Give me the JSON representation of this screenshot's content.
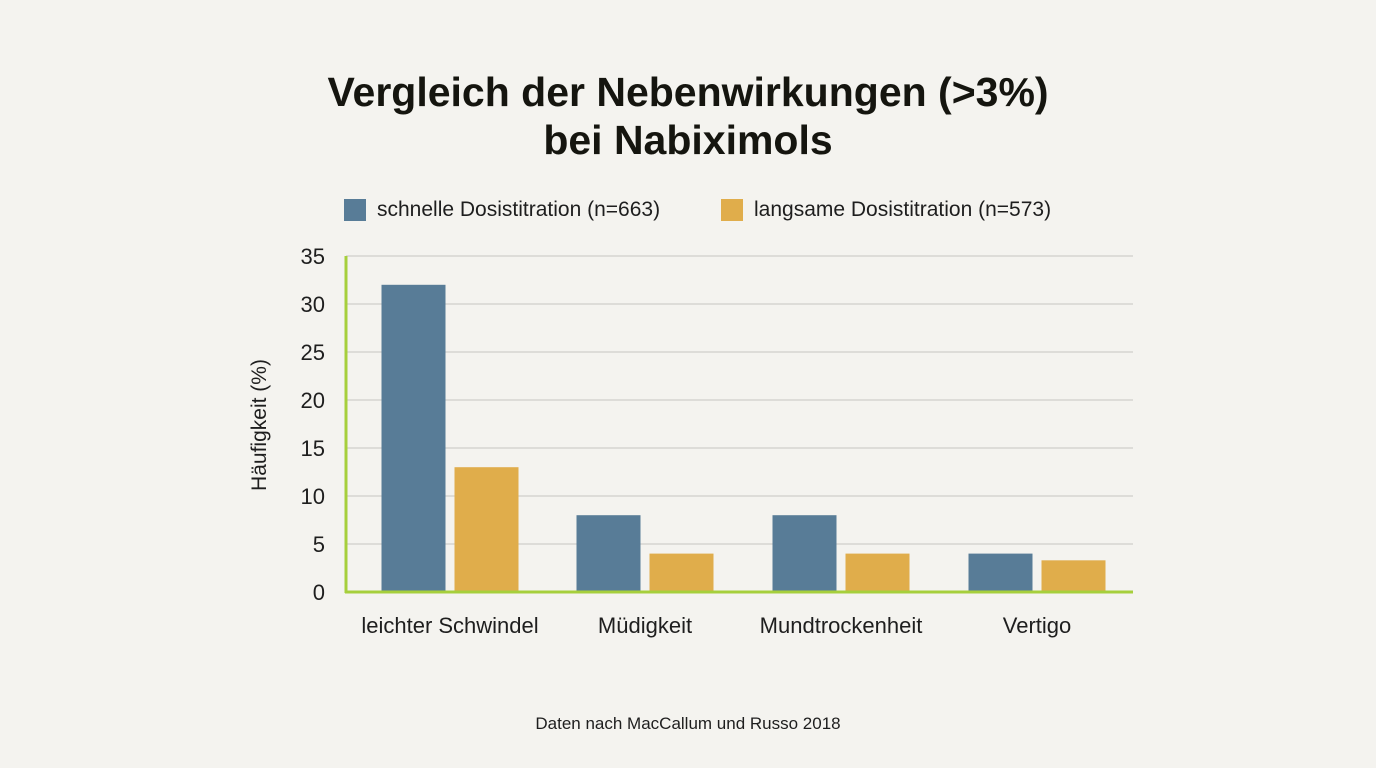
{
  "title_line1": "Vergleich der Nebenwirkungen (>3%)",
  "title_line2": "bei Nabiximols",
  "footer": "Daten nach MacCallum und Russo 2018",
  "colors": {
    "series1": "#587c97",
    "series2": "#e0ad4b",
    "axis": "#a6cf3c",
    "grid": "#cfcfcb",
    "background": "#f4f3ef"
  },
  "chart_data": {
    "type": "bar",
    "title": "Vergleich der Nebenwirkungen (>3%) bei Nabiximols",
    "xlabel": "",
    "ylabel": "Häufigkeit (%)",
    "ylim": [
      0,
      35
    ],
    "yticks": [
      0,
      5,
      10,
      15,
      20,
      25,
      30,
      35
    ],
    "grid": true,
    "legend_position": "top",
    "categories": [
      "leichter Schwindel",
      "Müdigkeit",
      "Mundtrockenheit",
      "Vertigo"
    ],
    "series": [
      {
        "name": "schnelle Dosistitration (n=663)",
        "values": [
          32,
          8,
          8,
          4
        ]
      },
      {
        "name": "langsame Dosistitration (n=573)",
        "values": [
          13,
          4,
          4,
          3.3
        ]
      }
    ]
  }
}
